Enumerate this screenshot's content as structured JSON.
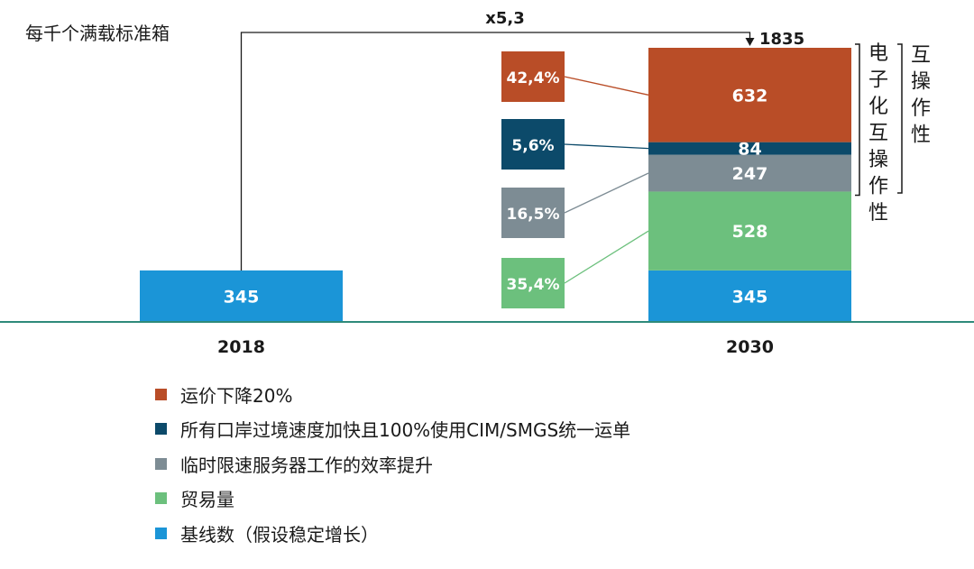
{
  "colors": {
    "baseline": "#1b95d7",
    "trade": "#6cc07d",
    "server": "#7d8c94",
    "border_speed": "#0c4a6a",
    "freight": "#b94d27",
    "axis": "#2f8a7a",
    "text_dark": "#1a1a1a",
    "text_light": "#ffffff"
  },
  "chart_data": {
    "type": "bar",
    "stacked": true,
    "ylabel": "每千个满载标准箱",
    "categories": [
      "2018",
      "2030"
    ],
    "series": [
      {
        "name": "基线数（假设稳定增长）",
        "color_key": "baseline",
        "values": [
          345,
          345
        ]
      },
      {
        "name": "贸易量",
        "color_key": "trade",
        "values": [
          0,
          528
        ]
      },
      {
        "name": "临时限速服务器工作的效率提升",
        "color_key": "server",
        "values": [
          0,
          247
        ]
      },
      {
        "name": "所有口岸过境速度加快且100%使用CIM/SMGS统一运单",
        "color_key": "border_speed",
        "values": [
          0,
          84
        ]
      },
      {
        "name": "运价下降20%",
        "color_key": "freight",
        "values": [
          0,
          632
        ]
      }
    ],
    "total_label": "1835",
    "growth_label": "x5,3",
    "shares": [
      {
        "series": "运价下降20%",
        "label": "42,4%",
        "color_key": "freight"
      },
      {
        "series": "所有口岸过境速度加快且100%使用CIM/SMGS统一运单",
        "label": "5,6%",
        "color_key": "border_speed"
      },
      {
        "series": "临时限速服务器工作的效率提升",
        "label": "16,5%",
        "color_key": "server"
      },
      {
        "series": "贸易量",
        "label": "35,4%",
        "color_key": "trade"
      }
    ],
    "brackets": [
      {
        "label": "电子化互操作性"
      },
      {
        "label": "互操作性"
      }
    ]
  },
  "legend": [
    {
      "label": "运价下降20%",
      "color_key": "freight"
    },
    {
      "label": "所有口岸过境速度加快且100%使用CIM/SMGS统一运单",
      "color_key": "border_speed"
    },
    {
      "label": "临时限速服务器工作的效率提升",
      "color_key": "server"
    },
    {
      "label": "贸易量",
      "color_key": "trade"
    },
    {
      "label": "基线数（假设稳定增长）",
      "color_key": "baseline"
    }
  ]
}
